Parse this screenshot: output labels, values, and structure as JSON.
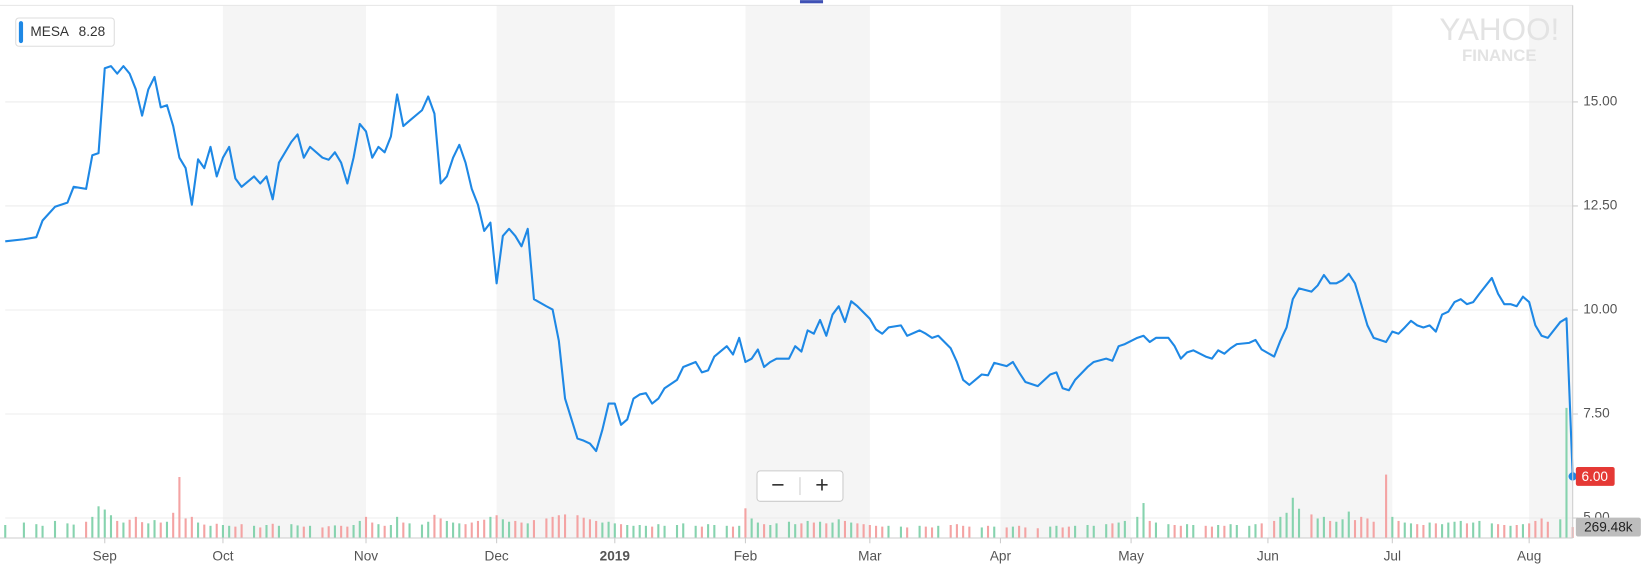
{
  "chart_data": {
    "type": "line",
    "symbol": "MESA",
    "legend_value": 8.28,
    "watermark": [
      "YAHOO!",
      "FINANCE"
    ],
    "zoom_controls": [
      "−",
      "+"
    ],
    "xlim": [
      0,
      252
    ],
    "xticks": [
      {
        "value": 16,
        "label": "Sep"
      },
      {
        "value": 35,
        "label": "Oct"
      },
      {
        "value": 58,
        "label": "Nov"
      },
      {
        "value": 79,
        "label": "Dec"
      },
      {
        "value": 98,
        "label": "2019"
      },
      {
        "value": 119,
        "label": "Feb"
      },
      {
        "value": 139,
        "label": "Mar"
      },
      {
        "value": 160,
        "label": "Apr"
      },
      {
        "value": 181,
        "label": "May"
      },
      {
        "value": 203,
        "label": "Jun"
      },
      {
        "value": 223,
        "label": "Jul"
      },
      {
        "value": 245,
        "label": "Aug"
      }
    ],
    "ylim": [
      4.52,
      17.32
    ],
    "yticks": [
      {
        "value": 5,
        "label": "5.00"
      },
      {
        "value": 7.5,
        "label": "7.50"
      },
      {
        "value": 10,
        "label": "10.00"
      },
      {
        "value": 12.5,
        "label": "12.50"
      },
      {
        "value": 15,
        "label": "15.00"
      }
    ],
    "grid": true,
    "x": [
      0,
      3,
      5,
      6,
      8,
      10,
      11,
      13,
      14,
      15,
      16,
      17,
      18,
      19,
      20,
      21,
      22,
      23,
      24,
      25,
      26,
      27,
      28,
      29,
      30,
      31,
      32,
      33,
      34,
      35,
      36,
      37,
      38,
      40,
      41,
      42,
      43,
      44,
      46,
      47,
      48,
      49,
      51,
      52,
      53,
      54,
      55,
      56,
      57,
      58,
      59,
      60,
      61,
      62,
      63,
      64,
      65,
      67,
      68,
      69,
      70,
      71,
      72,
      73,
      74,
      75,
      76,
      77,
      78,
      79,
      80,
      81,
      82,
      83,
      84,
      85,
      87,
      88,
      89,
      90,
      92,
      93,
      94,
      95,
      96,
      97,
      98,
      99,
      100,
      101,
      102,
      103,
      104,
      105,
      106,
      108,
      109,
      111,
      112,
      113,
      114,
      116,
      117,
      118,
      119,
      120,
      121,
      122,
      123,
      124,
      126,
      127,
      128,
      129,
      130,
      131,
      132,
      133,
      134,
      135,
      136,
      137,
      138,
      139,
      140,
      141,
      142,
      144,
      145,
      147,
      148,
      149,
      150,
      152,
      153,
      154,
      155,
      157,
      158,
      159,
      161,
      162,
      163,
      164,
      166,
      168,
      169,
      170,
      171,
      172,
      174,
      175,
      177,
      178,
      179,
      180,
      182,
      183,
      184,
      185,
      187,
      188,
      189,
      190,
      191,
      193,
      194,
      195,
      196,
      197,
      198,
      200,
      201,
      202,
      204,
      205,
      206,
      207,
      208,
      210,
      211,
      212,
      213,
      214,
      215,
      216,
      217,
      218,
      219,
      220,
      222,
      223,
      224,
      225,
      226,
      227,
      228,
      229,
      230,
      231,
      232,
      233,
      234,
      235,
      236,
      237,
      239,
      240,
      241,
      242,
      243,
      244,
      245,
      246,
      247,
      248,
      250,
      251,
      252
    ],
    "series": [
      {
        "name": "MESA",
        "color": "#1e88e5",
        "current_label": "6.00",
        "current_color": "#e53935",
        "values": [
          11.65,
          11.7,
          11.75,
          12.15,
          12.48,
          12.58,
          12.96,
          12.91,
          13.72,
          13.77,
          15.81,
          15.86,
          15.68,
          15.86,
          15.68,
          15.3,
          14.67,
          15.3,
          15.6,
          14.87,
          14.92,
          14.42,
          13.66,
          13.41,
          12.53,
          13.62,
          13.41,
          13.92,
          13.21,
          13.66,
          13.92,
          13.16,
          12.96,
          13.21,
          13.04,
          13.21,
          12.66,
          13.54,
          14.04,
          14.22,
          13.66,
          13.92,
          13.66,
          13.61,
          13.79,
          13.54,
          13.04,
          13.66,
          14.47,
          14.29,
          13.66,
          13.92,
          13.79,
          14.17,
          15.18,
          14.42,
          14.55,
          14.8,
          15.13,
          14.72,
          13.04,
          13.21,
          13.66,
          13.97,
          13.54,
          12.91,
          12.53,
          11.9,
          12.1,
          10.64,
          11.78,
          11.95,
          11.78,
          11.53,
          11.95,
          10.26,
          10.09,
          10.01,
          9.26,
          7.87,
          6.91,
          6.86,
          6.79,
          6.61,
          7.12,
          7.75,
          7.75,
          7.24,
          7.37,
          7.87,
          7.97,
          8.0,
          7.75,
          7.87,
          8.12,
          8.32,
          8.63,
          8.75,
          8.5,
          8.55,
          8.88,
          9.13,
          8.93,
          9.33,
          8.75,
          8.83,
          9.05,
          8.63,
          8.75,
          8.83,
          8.83,
          9.13,
          9.0,
          9.51,
          9.43,
          9.76,
          9.38,
          9.89,
          10.09,
          9.71,
          10.21,
          10.09,
          9.94,
          9.79,
          9.53,
          9.43,
          9.58,
          9.63,
          9.38,
          9.51,
          9.43,
          9.33,
          9.38,
          9.08,
          8.75,
          8.32,
          8.2,
          8.45,
          8.43,
          8.73,
          8.65,
          8.75,
          8.5,
          8.27,
          8.17,
          8.45,
          8.5,
          8.12,
          8.07,
          8.32,
          8.63,
          8.75,
          8.83,
          8.78,
          9.13,
          9.18,
          9.33,
          9.38,
          9.23,
          9.33,
          9.33,
          9.13,
          8.83,
          8.98,
          9.03,
          8.88,
          8.83,
          9.03,
          8.95,
          9.08,
          9.18,
          9.21,
          9.28,
          9.05,
          8.88,
          9.26,
          9.58,
          10.26,
          10.52,
          10.44,
          10.59,
          10.84,
          10.64,
          10.64,
          10.72,
          10.87,
          10.64,
          10.14,
          9.63,
          9.33,
          9.23,
          9.48,
          9.43,
          9.58,
          9.74,
          9.63,
          9.58,
          9.63,
          9.48,
          9.89,
          9.96,
          10.19,
          10.26,
          10.14,
          10.19,
          10.39,
          10.77,
          10.39,
          10.14,
          10.14,
          10.09,
          10.32,
          10.19,
          9.63,
          9.38,
          9.33,
          9.71,
          9.8,
          6.0
        ]
      }
    ],
    "volume": {
      "up_color": "#86d3ae",
      "down_color": "#f4a3a3",
      "ylim": [
        0,
        3300000
      ],
      "current_label": "269.48k",
      "values": [
        320000,
        380000,
        340000,
        300000,
        420000,
        360000,
        330000,
        400000,
        520000,
        780000,
        700000,
        560000,
        420000,
        380000,
        450000,
        520000,
        390000,
        360000,
        440000,
        380000,
        400000,
        620000,
        1500000,
        480000,
        520000,
        380000,
        330000,
        300000,
        350000,
        320000,
        300000,
        280000,
        340000,
        300000,
        260000,
        320000,
        350000,
        300000,
        340000,
        310000,
        280000,
        300000,
        260000,
        290000,
        310000,
        300000,
        280000,
        320000,
        420000,
        520000,
        380000,
        340000,
        300000,
        320000,
        520000,
        380000,
        360000,
        330000,
        400000,
        570000,
        480000,
        420000,
        380000,
        360000,
        340000,
        380000,
        420000,
        450000,
        520000,
        560000,
        460000,
        400000,
        420000,
        380000,
        360000,
        440000,
        480000,
        520000,
        560000,
        580000,
        560000,
        500000,
        460000,
        420000,
        380000,
        400000,
        360000,
        340000,
        320000,
        300000,
        320000,
        300000,
        280000,
        340000,
        300000,
        320000,
        360000,
        300000,
        280000,
        340000,
        320000,
        300000,
        280000,
        300000,
        730000,
        480000,
        380000,
        340000,
        320000,
        360000,
        400000,
        340000,
        360000,
        420000,
        380000,
        400000,
        360000,
        380000,
        460000,
        420000,
        380000,
        360000,
        340000,
        320000,
        300000,
        280000,
        300000,
        280000,
        260000,
        300000,
        280000,
        260000,
        300000,
        320000,
        340000,
        300000,
        280000,
        260000,
        300000,
        280000,
        260000,
        280000,
        300000,
        260000,
        240000,
        280000,
        300000,
        260000,
        280000,
        300000,
        320000,
        300000,
        340000,
        360000,
        380000,
        420000,
        520000,
        860000,
        420000,
        380000,
        340000,
        320000,
        300000,
        340000,
        320000,
        300000,
        280000,
        320000,
        300000,
        340000,
        320000,
        300000,
        340000,
        360000,
        420000,
        520000,
        620000,
        990000,
        720000,
        580000,
        480000,
        520000,
        420000,
        400000,
        460000,
        650000,
        440000,
        520000,
        480000,
        400000,
        1560000,
        520000,
        420000,
        380000,
        360000,
        340000,
        320000,
        380000,
        360000,
        340000,
        380000,
        400000,
        420000,
        360000,
        380000,
        420000,
        360000,
        340000,
        320000,
        300000,
        320000,
        340000,
        360000,
        420000,
        480000,
        400000,
        460000,
        3200000,
        269480
      ]
    }
  }
}
